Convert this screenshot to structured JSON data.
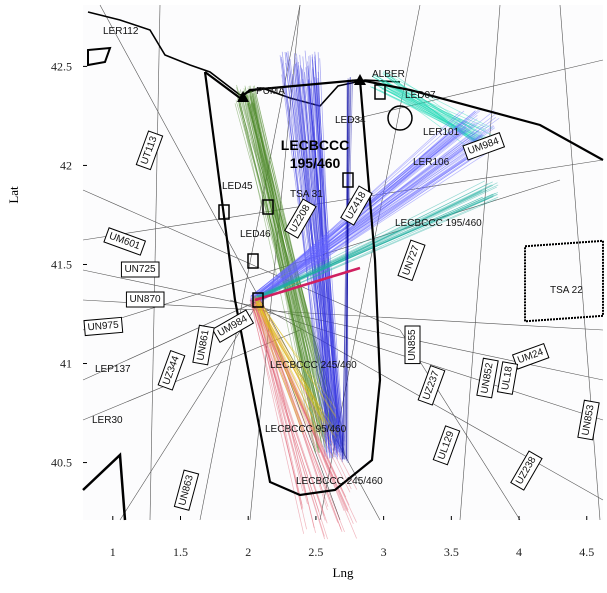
{
  "chart_data": {
    "type": "map",
    "xlabel": "Lng",
    "ylabel": "Lat",
    "xlim": [
      0.78,
      4.62
    ],
    "ylim": [
      40.21,
      42.81
    ],
    "xticks": [
      1,
      1.5,
      2,
      2.5,
      3,
      3.5,
      4,
      4.5
    ],
    "yticks": [
      40.5,
      41,
      41.5,
      42,
      42.5
    ],
    "sector_label": [
      "LECBCCC",
      "195/460"
    ],
    "labels": [
      "LER112",
      "ALBER",
      "LED07",
      "PUMA",
      "LED34",
      "LER101",
      "LER106",
      "UM984",
      "UT113",
      "LED45",
      "TSA 31",
      "LED46",
      "UZ208",
      "UZ418",
      "LECBCCC 195/460",
      "UM601",
      "UN725",
      "UN727",
      "UN870",
      "TSA 22",
      "UN975",
      "UM984",
      "UN861",
      "UN855",
      "UZ344",
      "LECBCCC 245/460",
      "LEP137",
      "UM24",
      "UN852",
      "UL18",
      "UZ237",
      "LER30",
      "UN853",
      "LECBCCC 95/460",
      "UL129",
      "UZ238",
      "UN863",
      "LECBCCC 245/460"
    ]
  }
}
